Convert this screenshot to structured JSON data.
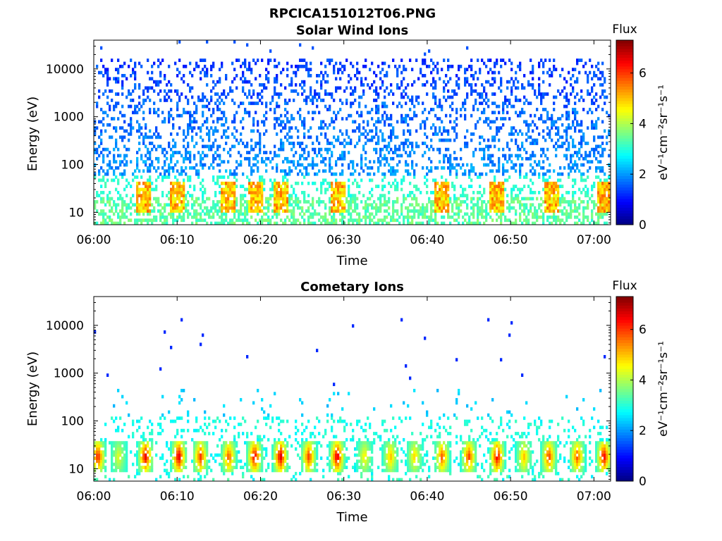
{
  "figure": {
    "filename_title": "RPCICA151012T06.PNG"
  },
  "chart_data": [
    {
      "type": "heatmap",
      "title": "Solar Wind Ions",
      "xlabel": "Time",
      "ylabel": "Energy (eV)",
      "x_ticks": [
        "06:00",
        "06:10",
        "06:20",
        "06:30",
        "06:40",
        "06:50",
        "07:00"
      ],
      "y_scale": "log",
      "y_ticks": [
        10,
        100,
        1000,
        10000
      ],
      "ylim": [
        5.5,
        40000
      ],
      "xlim_minutes": [
        0,
        62
      ],
      "colorbar": {
        "label": "Flux",
        "unit": "eV⁻¹cm⁻²sr⁻¹s⁻¹",
        "range": [
          0,
          7.3
        ],
        "ticks": [
          0,
          2,
          4,
          6
        ],
        "colormap": "jet"
      },
      "grid": false,
      "description": "Scattered low-flux (~2–3) counts from ~60 eV to ~15000 eV; enhanced flux (~4–6) bursts at 10–40 eV near 06:06, 06:10, 06:16, 06:19, 06:22, 06:29, 06:48, 06:55, 07:01"
    },
    {
      "type": "heatmap",
      "title": "Cometary Ions",
      "xlabel": "Time",
      "ylabel": "Energy (eV)",
      "x_ticks": [
        "06:00",
        "06:10",
        "06:20",
        "06:30",
        "06:40",
        "06:50",
        "07:00"
      ],
      "y_scale": "log",
      "y_ticks": [
        10,
        100,
        1000,
        10000
      ],
      "ylim": [
        5.5,
        40000
      ],
      "xlim_minutes": [
        0,
        62
      ],
      "colorbar": {
        "label": "Flux",
        "unit": "eV⁻¹cm⁻²sr⁻¹s⁻¹",
        "range": [
          0,
          7.3
        ],
        "ticks": [
          0,
          2,
          4,
          6
        ],
        "colormap": "jet"
      },
      "grid": false,
      "bursts": [
        {
          "t": 0.5,
          "peak": 6.5
        },
        {
          "t": 3.0,
          "peak": 4.5
        },
        {
          "t": 6.2,
          "peak": 6.8
        },
        {
          "t": 10.2,
          "peak": 7.0
        },
        {
          "t": 12.8,
          "peak": 6.2
        },
        {
          "t": 16.2,
          "peak": 6.0
        },
        {
          "t": 19.3,
          "peak": 6.8
        },
        {
          "t": 22.4,
          "peak": 7.0
        },
        {
          "t": 25.8,
          "peak": 6.2
        },
        {
          "t": 29.2,
          "peak": 7.0
        },
        {
          "t": 32.5,
          "peak": 4.8
        },
        {
          "t": 35.6,
          "peak": 5.2
        },
        {
          "t": 38.5,
          "peak": 5.0
        },
        {
          "t": 41.8,
          "peak": 6.0
        },
        {
          "t": 45.0,
          "peak": 6.2
        },
        {
          "t": 48.4,
          "peak": 6.8
        },
        {
          "t": 51.6,
          "peak": 5.2
        },
        {
          "t": 54.6,
          "peak": 6.2
        },
        {
          "t": 58.0,
          "peak": 6.0
        },
        {
          "t": 61.2,
          "peak": 6.8
        }
      ]
    }
  ]
}
